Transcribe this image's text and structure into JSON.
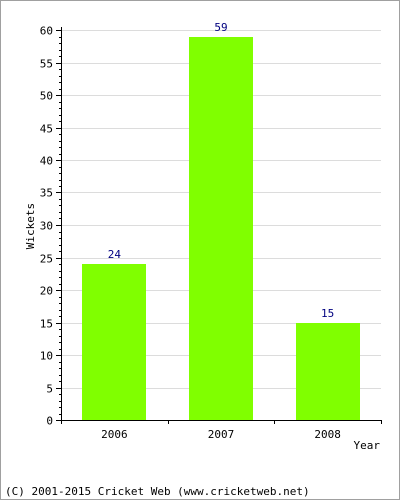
{
  "chart_data": {
    "type": "bar",
    "categories": [
      "2006",
      "2007",
      "2008"
    ],
    "values": [
      24,
      59,
      15
    ],
    "ylabel": "Wickets",
    "xlabel": "Year",
    "ylim": [
      0,
      60
    ],
    "ytick_step": 5,
    "grid": true,
    "show_value_labels": true,
    "colors": {
      "bar": "#80ff00",
      "value_label": "#000080",
      "grid": "#dcdcdc",
      "axis": "#000000"
    }
  },
  "footer": {
    "text": "(C) 2001-2015 Cricket Web (www.cricketweb.net)"
  }
}
